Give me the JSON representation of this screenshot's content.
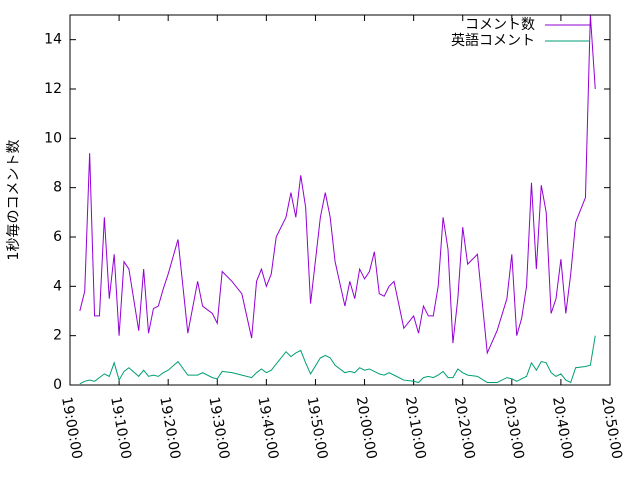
{
  "chart_data": {
    "type": "line",
    "ylabel": "1秒毎のコメント数",
    "x": [
      "19:02:00",
      "19:03:00",
      "19:04:00",
      "19:05:00",
      "19:06:00",
      "19:07:00",
      "19:08:00",
      "19:09:00",
      "19:10:00",
      "19:11:00",
      "19:12:00",
      "19:14:00",
      "19:15:00",
      "19:16:00",
      "19:17:00",
      "19:18:00",
      "19:19:00",
      "19:20:00",
      "19:22:00",
      "19:24:00",
      "19:26:00",
      "19:27:00",
      "19:29:00",
      "19:30:00",
      "19:31:00",
      "19:33:00",
      "19:35:00",
      "19:37:00",
      "19:38:00",
      "19:39:00",
      "19:40:00",
      "19:41:00",
      "19:42:00",
      "19:44:00",
      "19:45:00",
      "19:46:00",
      "19:47:00",
      "19:48:00",
      "19:49:00",
      "19:51:00",
      "19:52:00",
      "19:53:00",
      "19:54:00",
      "19:56:00",
      "19:57:00",
      "19:58:00",
      "19:59:00",
      "20:00:00",
      "20:01:00",
      "20:02:00",
      "20:03:00",
      "20:04:00",
      "20:05:00",
      "20:06:00",
      "20:08:00",
      "20:10:00",
      "20:11:00",
      "20:12:00",
      "20:13:00",
      "20:14:00",
      "20:15:00",
      "20:16:00",
      "20:17:00",
      "20:18:00",
      "20:19:00",
      "20:20:00",
      "20:21:00",
      "20:23:00",
      "20:25:00",
      "20:27:00",
      "20:29:00",
      "20:30:00",
      "20:31:00",
      "20:32:00",
      "20:33:00",
      "20:34:00",
      "20:35:00",
      "20:36:00",
      "20:37:00",
      "20:38:00",
      "20:39:00",
      "20:40:00",
      "20:41:00",
      "20:42:00",
      "20:43:00",
      "20:45:00",
      "20:46:00",
      "20:47:00"
    ],
    "series": [
      {
        "name": "コメント数",
        "color": "#9400d3",
        "values": [
          3.0,
          3.8,
          9.4,
          2.8,
          2.8,
          6.8,
          3.5,
          5.3,
          2.0,
          5.0,
          4.7,
          2.2,
          4.7,
          2.1,
          3.1,
          3.2,
          3.9,
          4.5,
          5.9,
          2.1,
          4.2,
          3.2,
          2.9,
          2.5,
          4.6,
          4.2,
          3.7,
          1.9,
          4.2,
          4.7,
          4.0,
          4.5,
          6.0,
          6.8,
          7.8,
          6.8,
          8.5,
          7.2,
          3.3,
          6.8,
          7.8,
          6.8,
          5.0,
          3.2,
          4.2,
          3.5,
          4.7,
          4.3,
          4.6,
          5.4,
          3.7,
          3.6,
          4.0,
          4.2,
          2.3,
          2.8,
          2.1,
          3.2,
          2.8,
          2.8,
          4.0,
          6.8,
          5.5,
          1.7,
          3.5,
          6.4,
          4.9,
          5.3,
          1.3,
          2.2,
          3.5,
          5.3,
          2.0,
          2.7,
          4.0,
          8.2,
          4.7,
          8.1,
          7.0,
          2.9,
          3.5,
          5.1,
          2.9,
          4.5,
          6.6,
          7.6,
          15.0,
          12.0
        ]
      },
      {
        "name": "英語コメント",
        "color": "#009e73",
        "values": [
          0.05,
          0.15,
          0.2,
          0.15,
          0.3,
          0.45,
          0.35,
          0.9,
          0.2,
          0.55,
          0.7,
          0.35,
          0.6,
          0.35,
          0.4,
          0.35,
          0.5,
          0.6,
          0.95,
          0.4,
          0.4,
          0.5,
          0.3,
          0.25,
          0.55,
          0.5,
          0.4,
          0.3,
          0.5,
          0.65,
          0.5,
          0.6,
          0.85,
          1.35,
          1.15,
          1.3,
          1.4,
          0.9,
          0.45,
          1.1,
          1.2,
          1.1,
          0.8,
          0.5,
          0.55,
          0.5,
          0.7,
          0.6,
          0.65,
          0.55,
          0.45,
          0.4,
          0.5,
          0.4,
          0.2,
          0.15,
          0.1,
          0.3,
          0.35,
          0.3,
          0.4,
          0.55,
          0.3,
          0.3,
          0.65,
          0.5,
          0.4,
          0.35,
          0.1,
          0.1,
          0.3,
          0.25,
          0.15,
          0.25,
          0.35,
          0.9,
          0.6,
          0.95,
          0.9,
          0.5,
          0.35,
          0.45,
          0.2,
          0.1,
          0.7,
          0.75,
          0.8,
          2.0
        ]
      }
    ],
    "xlim": [
      "19:00:00",
      "20:50:00"
    ],
    "xticks": [
      "19:00:00",
      "19:10:00",
      "19:20:00",
      "19:30:00",
      "19:40:00",
      "19:50:00",
      "20:00:00",
      "20:10:00",
      "20:20:00",
      "20:30:00",
      "20:40:00",
      "20:50:00"
    ],
    "ylim": [
      0,
      15
    ],
    "yticks": [
      0,
      2,
      4,
      6,
      8,
      10,
      12,
      14
    ],
    "legend": "top-right",
    "grid": false
  }
}
